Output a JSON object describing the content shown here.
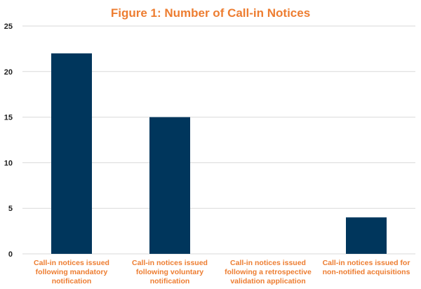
{
  "chart_data": {
    "type": "bar",
    "title": "Figure 1: Number of Call-in Notices",
    "categories": [
      [
        "Call-in notices issued",
        "following mandatory",
        "notification"
      ],
      [
        "Call-in notices issued",
        "following voluntary",
        "notification"
      ],
      [
        "Call-in notices issued",
        "following a retrospective",
        "validation application"
      ],
      [
        "Call-in notices issued for",
        "non-notified acquisitions"
      ]
    ],
    "values": [
      22,
      15,
      0,
      4
    ],
    "ylim": [
      0,
      25
    ],
    "yticks": [
      0,
      5,
      10,
      15,
      20,
      25
    ],
    "grid": true,
    "xlabel": "",
    "ylabel": "",
    "colors": {
      "bar": "#00365c",
      "title": "#ed7d31",
      "category_label": "#ed7d31",
      "grid": "#d9d9d9",
      "axis": "#d9d9d9"
    }
  }
}
